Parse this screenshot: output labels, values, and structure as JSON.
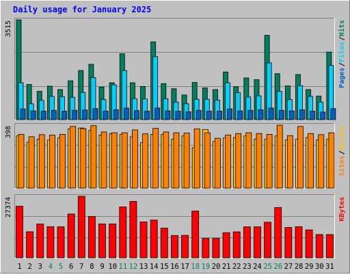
{
  "chart_data": {
    "type": "bar",
    "title": "Daily usage for January 2025",
    "categories": [
      "1",
      "2",
      "3",
      "4",
      "5",
      "6",
      "7",
      "8",
      "9",
      "10",
      "11",
      "12",
      "13",
      "14",
      "15",
      "16",
      "17",
      "18",
      "19",
      "20",
      "21",
      "22",
      "23",
      "24",
      "25",
      "26",
      "27",
      "28",
      "29",
      "30",
      "31"
    ],
    "weekend_days": [
      "4",
      "5",
      "11",
      "12",
      "18",
      "19",
      "25",
      "26"
    ],
    "panels": [
      {
        "id": "hits-files-pages",
        "ymax_label": "3515",
        "ymax": 3515,
        "axis_legend": [
          "Pages",
          "Files",
          "Hits"
        ],
        "series": [
          {
            "name": "Hits",
            "color": "#008060",
            "values": [
              3515,
              1240,
              1000,
              1180,
              1060,
              1370,
              1730,
              1950,
              1150,
              1300,
              2320,
              1300,
              1170,
              2740,
              1270,
              1090,
              870,
              1310,
              1120,
              1060,
              1680,
              1160,
              1470,
              1410,
              2970,
              1620,
              1190,
              1590,
              1060,
              830,
              2380
            ]
          },
          {
            "name": "Files",
            "color": "#00d0ff",
            "values": [
              1300,
              560,
              680,
              820,
              810,
              790,
              960,
              1480,
              710,
              1230,
              1730,
              740,
              730,
              2220,
              740,
              620,
              560,
              720,
              720,
              690,
              1300,
              950,
              800,
              840,
              2000,
              1000,
              710,
              1200,
              820,
              620,
              1910
            ]
          },
          {
            "name": "Pages",
            "color": "#0060c0",
            "values": [
              380,
              310,
              300,
              330,
              300,
              330,
              340,
              390,
              300,
              350,
              410,
              320,
              300,
              410,
              310,
              300,
              280,
              330,
              300,
              300,
              380,
              310,
              330,
              350,
              410,
              330,
              310,
              350,
              300,
              270,
              390
            ]
          }
        ]
      },
      {
        "id": "visits-sites",
        "ymax_label": "398",
        "ymax": 398,
        "axis_legend": [
          "Sites",
          "Visits"
        ],
        "series": [
          {
            "name": "Visits",
            "color": "#ffc000",
            "values": [
              330,
              290,
              310,
              305,
              318,
              375,
              380,
              365,
              335,
              345,
              340,
              325,
              288,
              340,
              340,
              310,
              330,
              255,
              370,
              295,
              318,
              320,
              330,
              310,
              310,
              330,
              305,
              310,
              320,
              305,
              310
            ]
          },
          {
            "name": "Sites",
            "color": "#ff8000",
            "values": [
              340,
              325,
              338,
              335,
              340,
              390,
              376,
              395,
              355,
              350,
              350,
              368,
              343,
              378,
              355,
              350,
              348,
              375,
              350,
              315,
              336,
              345,
              350,
              345,
              340,
              398,
              332,
              390,
              345,
              338,
              350
            ]
          }
        ]
      },
      {
        "id": "kbytes",
        "ymax_label": "27374",
        "ymax": 27374,
        "axis_legend": [
          "KBytes"
        ],
        "series": [
          {
            "name": "KBytes",
            "color": "#ff0000",
            "values": [
              22950,
              11600,
              15040,
              13850,
              13800,
              19500,
              27374,
              18400,
              15100,
              15100,
              22640,
              25100,
              16000,
              16800,
              13200,
              9960,
              10000,
              20800,
              8640,
              8640,
              11200,
              11560,
              13800,
              13800,
              15840,
              22380,
              13500,
              13850,
              12450,
              10360,
              10360
            ]
          }
        ]
      }
    ]
  }
}
